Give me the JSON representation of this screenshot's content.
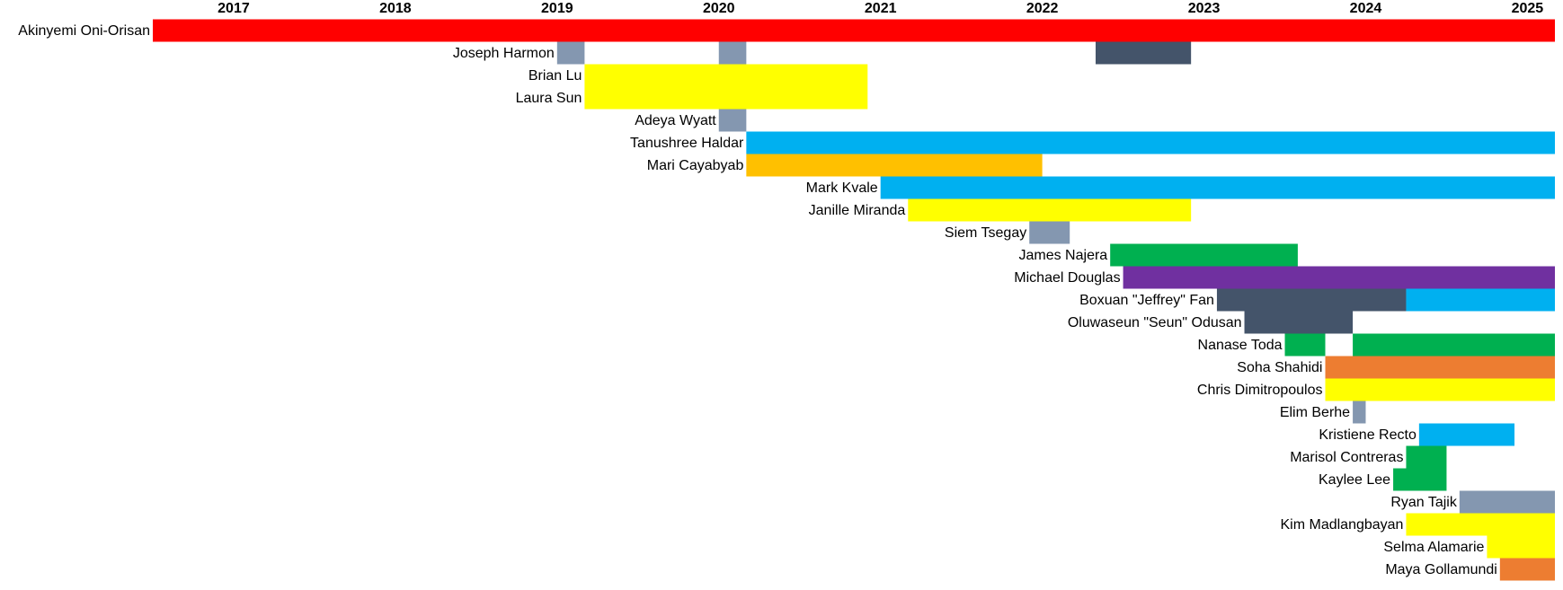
{
  "chart_data": {
    "type": "gantt",
    "xlim": [
      2017,
      2025.67
    ],
    "xticks": [
      {
        "value": 2017.5,
        "label": "2017"
      },
      {
        "value": 2018.5,
        "label": "2018"
      },
      {
        "value": 2019.5,
        "label": "2019"
      },
      {
        "value": 2020.5,
        "label": "2020"
      },
      {
        "value": 2021.5,
        "label": "2021"
      },
      {
        "value": 2022.5,
        "label": "2022"
      },
      {
        "value": 2023.5,
        "label": "2023"
      },
      {
        "value": 2024.5,
        "label": "2024"
      },
      {
        "value": 2025.5,
        "label": "2025"
      }
    ],
    "rows": [
      {
        "name": "Akinyemi Oni-Orisan",
        "segments": [
          {
            "start": 2017,
            "end": 2025.67,
            "color": "#FF0000"
          }
        ]
      },
      {
        "name": "Joseph Harmon",
        "segments": [
          {
            "start": 2019.5,
            "end": 2019.67,
            "color": "#8497B0"
          },
          {
            "start": 2020.5,
            "end": 2020.67,
            "color": "#8497B0"
          },
          {
            "start": 2022.83,
            "end": 2023.42,
            "color": "#44546A"
          }
        ]
      },
      {
        "name": "Brian Lu",
        "segments": [
          {
            "start": 2019.67,
            "end": 2021.42,
            "color": "#FFFF00"
          }
        ]
      },
      {
        "name": "Laura Sun",
        "segments": [
          {
            "start": 2019.67,
            "end": 2021.42,
            "color": "#FFFF00"
          }
        ]
      },
      {
        "name": "Adeya Wyatt",
        "segments": [
          {
            "start": 2020.5,
            "end": 2020.67,
            "color": "#8497B0"
          }
        ]
      },
      {
        "name": "Tanushree Haldar",
        "segments": [
          {
            "start": 2020.67,
            "end": 2025.67,
            "color": "#00B0F0"
          }
        ]
      },
      {
        "name": "Mari Cayabyab",
        "segments": [
          {
            "start": 2020.67,
            "end": 2022.5,
            "color": "#FFC000"
          }
        ]
      },
      {
        "name": "Mark Kvale",
        "segments": [
          {
            "start": 2021.5,
            "end": 2025.67,
            "color": "#00B0F0"
          }
        ]
      },
      {
        "name": "Janille Miranda",
        "segments": [
          {
            "start": 2021.67,
            "end": 2023.42,
            "color": "#FFFF00"
          }
        ]
      },
      {
        "name": "Siem Tsegay",
        "segments": [
          {
            "start": 2022.42,
            "end": 2022.67,
            "color": "#8497B0"
          }
        ]
      },
      {
        "name": "James Najera",
        "segments": [
          {
            "start": 2022.92,
            "end": 2024.08,
            "color": "#00B050"
          }
        ]
      },
      {
        "name": "Michael Douglas",
        "segments": [
          {
            "start": 2023,
            "end": 2025.67,
            "color": "#7030A0"
          }
        ]
      },
      {
        "name": "Boxuan \"Jeffrey\" Fan",
        "segments": [
          {
            "start": 2023.58,
            "end": 2024.75,
            "color": "#44546A"
          },
          {
            "start": 2024.75,
            "end": 2025.67,
            "color": "#00B0F0"
          }
        ]
      },
      {
        "name": "Oluwaseun \"Seun\" Odusan",
        "segments": [
          {
            "start": 2023.75,
            "end": 2024.42,
            "color": "#44546A"
          }
        ]
      },
      {
        "name": "Nanase Toda",
        "segments": [
          {
            "start": 2024,
            "end": 2024.25,
            "color": "#00B050"
          },
          {
            "start": 2024.42,
            "end": 2025.67,
            "color": "#00B050"
          }
        ]
      },
      {
        "name": "Soha Shahidi",
        "segments": [
          {
            "start": 2024.25,
            "end": 2025.67,
            "color": "#ED7D31"
          }
        ]
      },
      {
        "name": "Chris Dimitropoulos",
        "segments": [
          {
            "start": 2024.25,
            "end": 2025.67,
            "color": "#FFFF00"
          }
        ]
      },
      {
        "name": "Elim Berhe",
        "segments": [
          {
            "start": 2024.42,
            "end": 2024.5,
            "color": "#8497B0"
          }
        ]
      },
      {
        "name": "Kristiene Recto",
        "segments": [
          {
            "start": 2024.83,
            "end": 2025.42,
            "color": "#00B0F0"
          }
        ]
      },
      {
        "name": "Marisol Contreras",
        "segments": [
          {
            "start": 2024.75,
            "end": 2025,
            "color": "#00B050"
          }
        ]
      },
      {
        "name": "Kaylee Lee",
        "segments": [
          {
            "start": 2024.67,
            "end": 2025,
            "color": "#00B050"
          }
        ]
      },
      {
        "name": "Ryan Tajik",
        "segments": [
          {
            "start": 2025.08,
            "end": 2025.67,
            "color": "#8497B0"
          }
        ]
      },
      {
        "name": "Kim Madlangbayan",
        "segments": [
          {
            "start": 2024.75,
            "end": 2025.67,
            "color": "#FFFF00"
          }
        ]
      },
      {
        "name": "Selma Alamarie",
        "segments": [
          {
            "start": 2025.25,
            "end": 2025.67,
            "color": "#FFFF00"
          }
        ]
      },
      {
        "name": "Maya Gollamundi",
        "segments": [
          {
            "start": 2025.33,
            "end": 2025.67,
            "color": "#ED7D31"
          }
        ]
      }
    ]
  }
}
